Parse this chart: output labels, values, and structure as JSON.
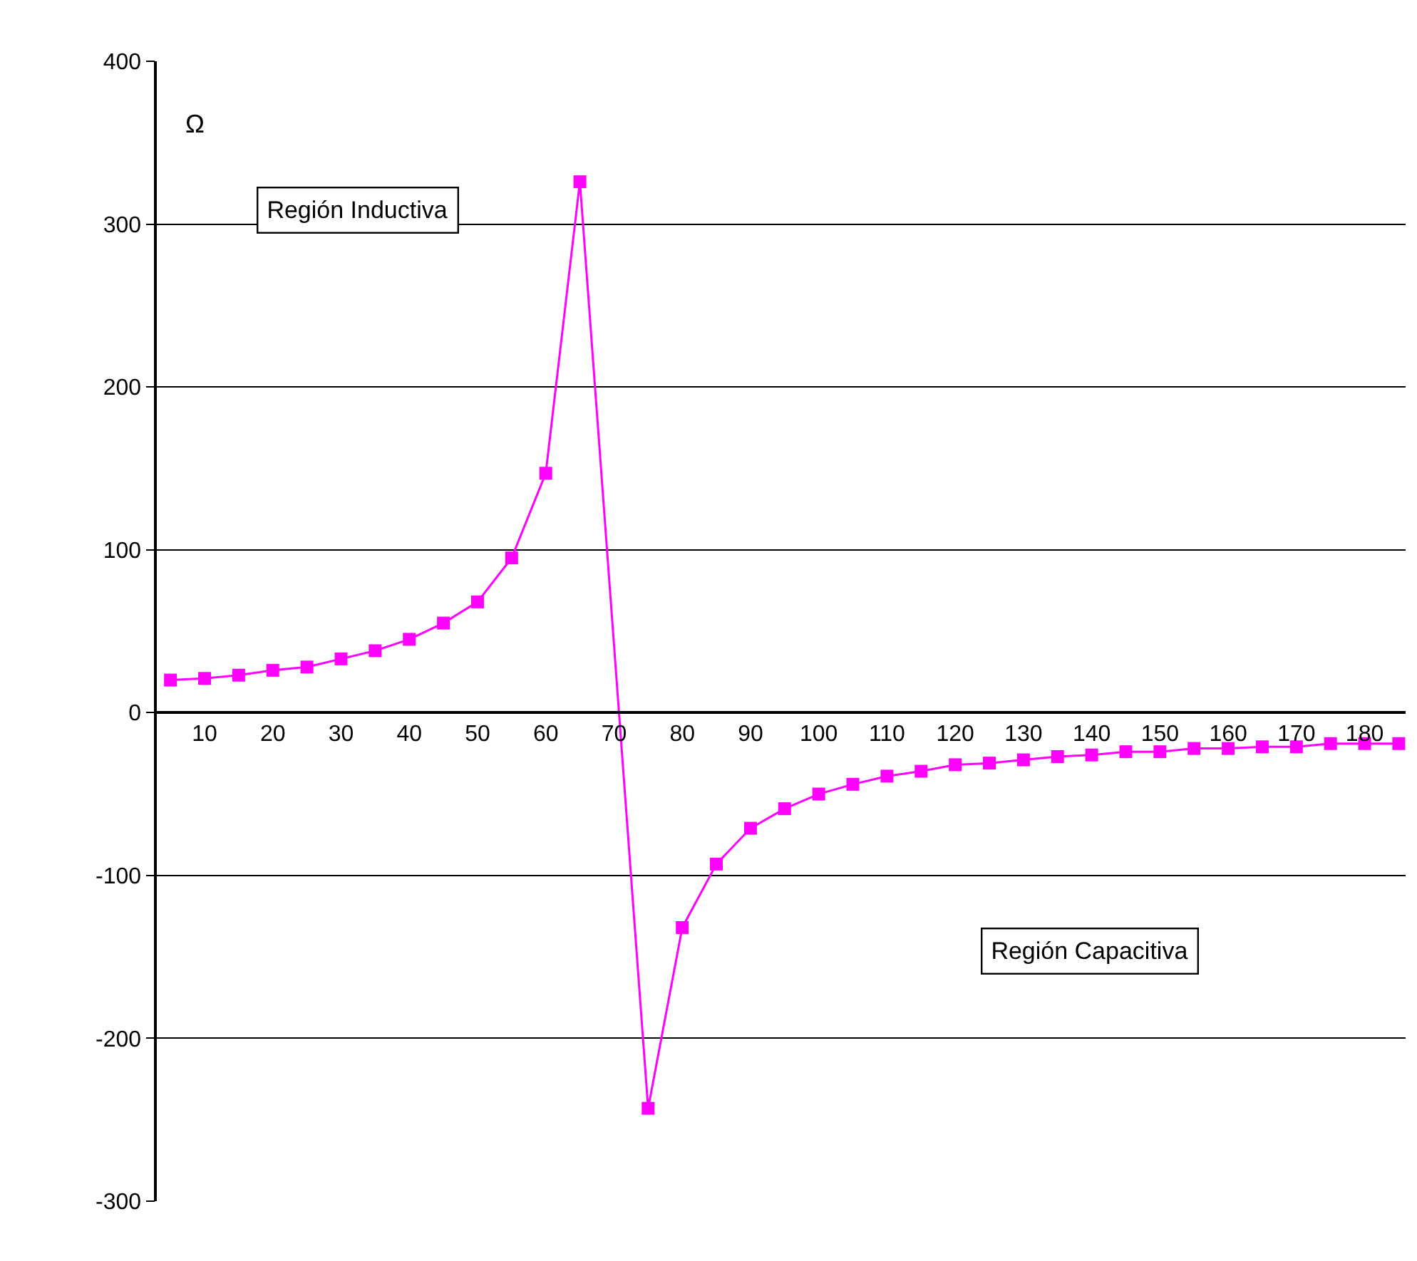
{
  "chart_data": {
    "type": "line",
    "ylabel": "Ω",
    "x": [
      5,
      10,
      15,
      20,
      25,
      30,
      35,
      40,
      45,
      50,
      55,
      60,
      65,
      75,
      80,
      85,
      90,
      95,
      100,
      105,
      110,
      115,
      120,
      125,
      130,
      135,
      140,
      145,
      150,
      155,
      160,
      165,
      170,
      175,
      180,
      185
    ],
    "series": [
      {
        "color": "#ff00ff",
        "values": [
          20,
          21,
          23,
          26,
          28,
          33,
          38,
          45,
          55,
          68,
          95,
          147,
          326,
          -243,
          -132,
          -93,
          -71,
          -59,
          -50,
          -44,
          -39,
          -36,
          -32,
          -31,
          -29,
          -27,
          -26,
          -24,
          -24,
          -22,
          -22,
          -21,
          -21,
          -19,
          -19,
          -19
        ]
      }
    ],
    "xlim": [
      3,
      186
    ],
    "xticks": [
      10,
      20,
      30,
      40,
      50,
      60,
      70,
      80,
      90,
      100,
      110,
      120,
      130,
      140,
      150,
      160,
      170,
      180
    ],
    "ylim": [
      -300,
      400
    ],
    "yticks": [
      -300,
      -200,
      -100,
      0,
      100,
      200,
      300,
      400
    ],
    "grid": "y",
    "marker": "square",
    "line_style": "solid",
    "annotations": [
      "Región Inductiva",
      "Región Capacitiva"
    ]
  }
}
